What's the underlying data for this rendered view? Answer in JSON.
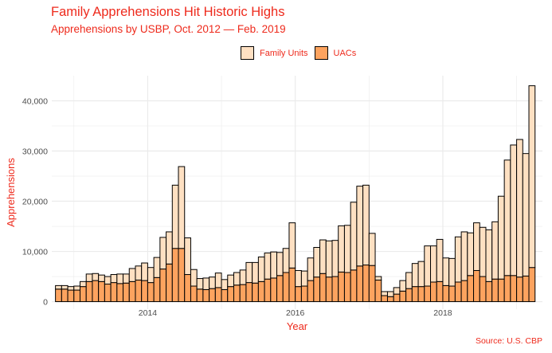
{
  "title": "Family Apprehensions Hit Historic Highs",
  "subtitle": "Apprehensions by USBP, Oct. 2012 — Feb. 2019",
  "caption": "Source: U.S. CBP",
  "colors": {
    "accent": "#ee2a1c",
    "family": "#fee0c2",
    "uac": "#fda35f",
    "outline": "#000000",
    "grid": "#ebebeb"
  },
  "legend": {
    "family_label": "Family Units",
    "uac_label": "UACs"
  },
  "chart_data": {
    "type": "bar",
    "stacked": true,
    "xlabel": "Year",
    "ylabel": "Apprehensions",
    "x_start": "2012-10",
    "x_range": [
      2012.7,
      2019.35
    ],
    "ylim": [
      -1500,
      45000
    ],
    "xticks": [
      {
        "value": 2014,
        "label": "2014"
      },
      {
        "value": 2016,
        "label": "2016"
      },
      {
        "value": 2018,
        "label": "2018"
      }
    ],
    "yticks": [
      {
        "value": 0,
        "label": "0"
      },
      {
        "value": 10000,
        "label": "10,000"
      },
      {
        "value": 20000,
        "label": "20,000"
      },
      {
        "value": 30000,
        "label": "30,000"
      },
      {
        "value": 40000,
        "label": "40,000"
      }
    ],
    "grid": true,
    "legend_position": "top",
    "series": [
      {
        "name": "UACs",
        "values": [
          2500,
          2500,
          2300,
          2300,
          3000,
          4000,
          4200,
          4000,
          3500,
          3800,
          3600,
          3700,
          4000,
          4300,
          4200,
          3800,
          4800,
          6500,
          7500,
          10600,
          10600,
          5400,
          3100,
          2500,
          2400,
          2600,
          2800,
          2400,
          3000,
          3300,
          3400,
          3800,
          3700,
          4000,
          4500,
          4700,
          5200,
          5800,
          6700,
          3000,
          3100,
          4200,
          4900,
          5600,
          4900,
          5000,
          5900,
          5800,
          6300,
          7100,
          7300,
          7200,
          4300,
          1200,
          1000,
          1500,
          2100,
          2600,
          3000,
          3000,
          3100,
          3900,
          4000,
          3200,
          3100,
          3900,
          4200,
          5200,
          6200,
          5000,
          4000,
          4500,
          4500,
          5200,
          5200,
          4900,
          5100,
          6800
        ]
      },
      {
        "name": "Family Units",
        "values": [
          700,
          700,
          700,
          800,
          1000,
          1500,
          1400,
          1300,
          1500,
          1600,
          1900,
          1800,
          2600,
          2800,
          3500,
          3000,
          4000,
          6300,
          6400,
          12600,
          16300,
          7300,
          3300,
          2100,
          2300,
          2300,
          2900,
          2000,
          2300,
          2500,
          2900,
          4000,
          4100,
          4900,
          5200,
          5200,
          4600,
          4800,
          9000,
          3200,
          3000,
          4500,
          5900,
          6700,
          7200,
          7200,
          9200,
          9400,
          13500,
          15900,
          15900,
          6400,
          700,
          800,
          1000,
          1300,
          2100,
          3200,
          4600,
          5000,
          8000,
          7200,
          8400,
          5500,
          5500,
          9000,
          9700,
          8500,
          9500,
          9800,
          10300,
          11400,
          16500,
          23000,
          26000,
          27400,
          24400,
          36200
        ]
      }
    ]
  }
}
